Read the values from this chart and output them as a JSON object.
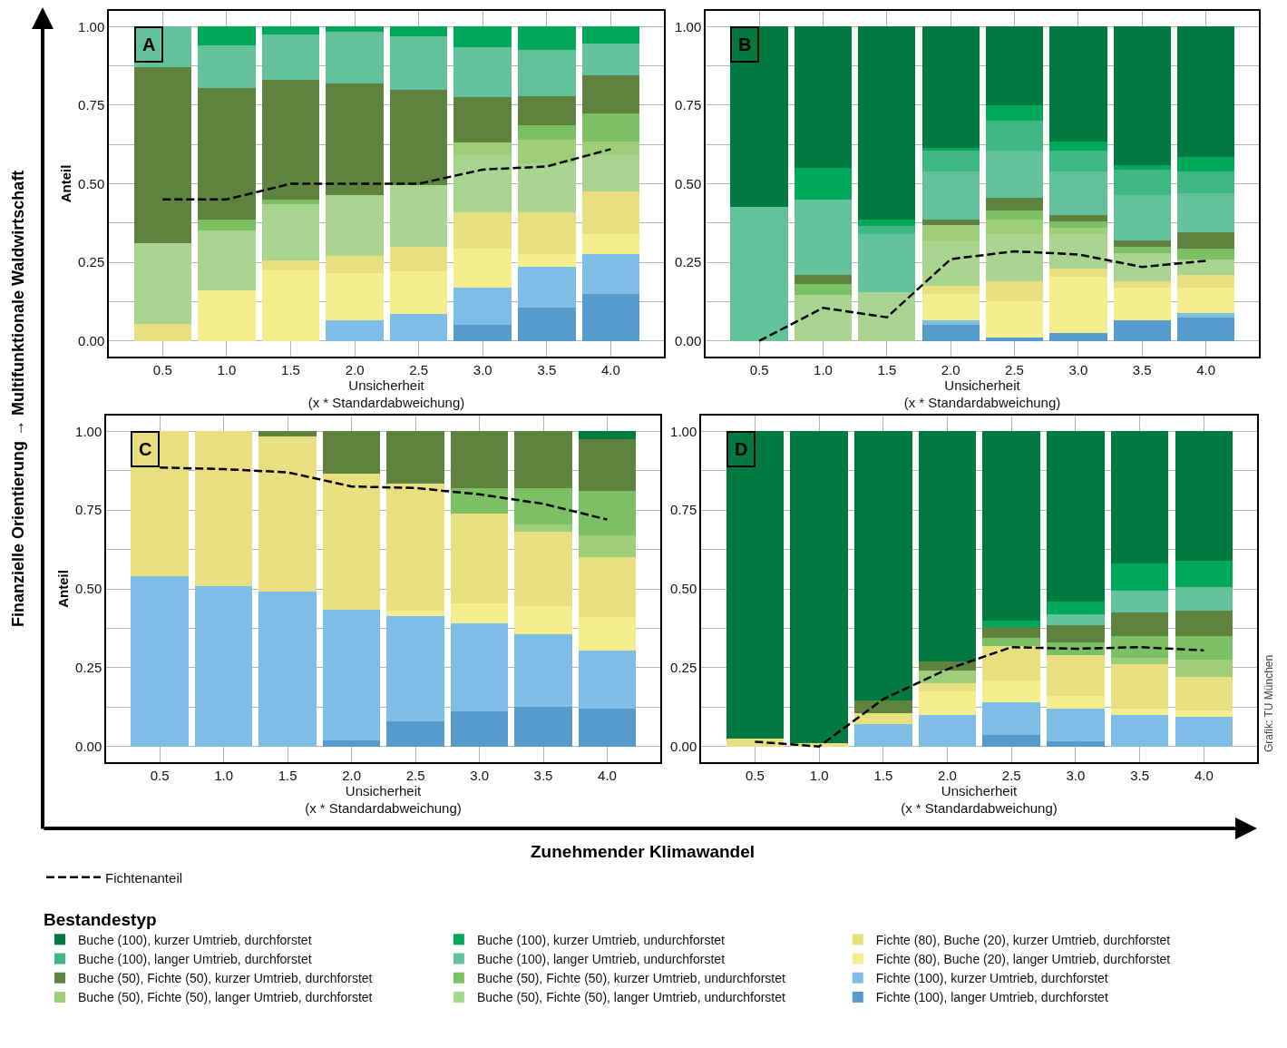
{
  "chart_data": [
    {
      "type": "bar",
      "title": "A",
      "stacked": true,
      "xlabel": "Unsicherheit\n(x * Standardabweichung)",
      "ylabel": "Anteil",
      "legend": "bottom",
      "legend_title": "Bestandestyp",
      "grid": true,
      "annotations": [
        "Finanzielle Orientierung → Multifunktionale Waldwirtschaft",
        "Zunehmender Klimawandel",
        "Grafik: TU München"
      ],
      "categories": [
        "0.5",
        "1.0",
        "1.5",
        "2.0",
        "2.5",
        "3.0",
        "3.5",
        "4.0"
      ],
      "ylim": [
        -0.05,
        1.05
      ],
      "yticks": [
        {
          "value": 0,
          "label": "0.00"
        },
        {
          "value": 0.125,
          "label": null
        },
        {
          "value": 0.25,
          "label": "0.25"
        },
        {
          "value": 0.375,
          "label": null
        },
        {
          "value": 0.5,
          "label": "0.50"
        },
        {
          "value": 0.625,
          "label": null
        },
        {
          "value": 0.75,
          "label": "0.75"
        },
        {
          "value": 0.875,
          "label": null
        },
        {
          "value": 1,
          "label": "1.00"
        }
      ],
      "series": [
        {
          "name": "Fichte (100), langer Umtrieb, durchforstet",
          "color": "#559bcb",
          "values": [
            0,
            0,
            0,
            0,
            0,
            0.05,
            0.105,
            0.15
          ]
        },
        {
          "name": "Fichte (100), kurzer Umtrieb, durchforstet",
          "color": "#7dbde6",
          "values": [
            0,
            0,
            0,
            0.065,
            0.085,
            0.12,
            0.13,
            0.125
          ]
        },
        {
          "name": "Fichte (80), Buche (20), langer Umtrieb, durchforstet",
          "color": "#f4ee8f",
          "values": [
            0,
            0.16,
            0.225,
            0.15,
            0.135,
            0.125,
            0.04,
            0.065
          ]
        },
        {
          "name": "Fichte (80), Buche (20), kurzer Umtrieb, durchforstet",
          "color": "#e8df80",
          "values": [
            0.055,
            0,
            0.03,
            0.055,
            0.08,
            0.115,
            0.135,
            0.135
          ]
        },
        {
          "name": "Buche (50), Fichte (50), langer Umtrieb, undurchforstet",
          "color": "#aad591",
          "values": [
            0.255,
            0.19,
            0.18,
            0.195,
            0.195,
            0.18,
            0.155,
            0.115
          ]
        },
        {
          "name": "Buche (50), Fichte (50), langer Umtrieb, durchforstet",
          "color": "#9fce78",
          "values": [
            0,
            0,
            0,
            0,
            0,
            0.04,
            0.075,
            0.045
          ]
        },
        {
          "name": "Buche (50), Fichte (50), kurzer Umtrieb, undurchforstet",
          "color": "#7bc063",
          "values": [
            0,
            0.035,
            0.015,
            0,
            0,
            0,
            0.045,
            0.09
          ]
        },
        {
          "name": "Buche (50), Fichte (50), kurzer Umtrieb, durchforstet",
          "color": "#60823f",
          "values": [
            0.56,
            0.42,
            0.38,
            0.355,
            0.305,
            0.145,
            0.095,
            0.12
          ]
        },
        {
          "name": "Buche (100), langer Umtrieb, undurchforstet",
          "color": "#63c19c",
          "values": [
            0.13,
            0.135,
            0.145,
            0.165,
            0.17,
            0.16,
            0.145,
            0.1
          ]
        },
        {
          "name": "Buche (100), langer Umtrieb, durchforstet",
          "color": "#40b883",
          "values": [
            0,
            0,
            0,
            0,
            0,
            0,
            0,
            0
          ]
        },
        {
          "name": "Buche (100), kurzer Umtrieb, undurchforstet",
          "color": "#00a85a",
          "values": [
            0,
            0.06,
            0.025,
            0.015,
            0.03,
            0.065,
            0.075,
            0.055
          ]
        },
        {
          "name": "Buche (100), kurzer Umtrieb, durchforstet",
          "color": "#007a40",
          "values": [
            0,
            0,
            0,
            0,
            0,
            0,
            0,
            0
          ]
        },
        {
          "name": "Fichtenanteil",
          "type": "line",
          "line_style": "dashed",
          "color": "#000000",
          "values": [
            0.45,
            0.45,
            0.5,
            0.5,
            0.5,
            0.545,
            0.555,
            0.61
          ]
        }
      ]
    },
    {
      "type": "bar",
      "title": "B",
      "stacked": true,
      "xlabel": "Unsicherheit\n(x * Standardabweichung)",
      "grid": true,
      "categories": [
        "0.5",
        "1.0",
        "1.5",
        "2.0",
        "2.5",
        "3.0",
        "3.5",
        "4.0"
      ],
      "ylim": [
        -0.05,
        1.05
      ],
      "yticks": [
        {
          "value": 0,
          "label": "0.00"
        },
        {
          "value": 0.125,
          "label": null
        },
        {
          "value": 0.25,
          "label": "0.25"
        },
        {
          "value": 0.375,
          "label": null
        },
        {
          "value": 0.5,
          "label": "0.50"
        },
        {
          "value": 0.625,
          "label": null
        },
        {
          "value": 0.75,
          "label": "0.75"
        },
        {
          "value": 0.875,
          "label": null
        },
        {
          "value": 1,
          "label": "1.00"
        }
      ],
      "series": [
        {
          "color": "#559bcb",
          "values": [
            0,
            0,
            0,
            0.05,
            0.01,
            0.025,
            0.065,
            0.075
          ]
        },
        {
          "color": "#7dbde6",
          "values": [
            0,
            0,
            0,
            0.015,
            0,
            0,
            0,
            0.015
          ]
        },
        {
          "color": "#f4ee8f",
          "values": [
            0,
            0,
            0,
            0.085,
            0.115,
            0.18,
            0.105,
            0.08
          ]
        },
        {
          "color": "#e8df80",
          "values": [
            0,
            0,
            0,
            0.025,
            0.065,
            0.025,
            0.02,
            0.04
          ]
        },
        {
          "color": "#aad591",
          "values": [
            0,
            0.145,
            0.155,
            0.145,
            0.15,
            0.11,
            0.09,
            0.05
          ]
        },
        {
          "color": "#9fce78",
          "values": [
            0,
            0,
            0,
            0.05,
            0.045,
            0.02,
            0,
            0
          ]
        },
        {
          "color": "#7bc063",
          "values": [
            0,
            0.035,
            0,
            0,
            0.03,
            0.02,
            0.02,
            0.035
          ]
        },
        {
          "color": "#60823f",
          "values": [
            0,
            0.03,
            0,
            0.015,
            0.04,
            0.02,
            0.02,
            0.05
          ]
        },
        {
          "color": "#63c19c",
          "values": [
            0.425,
            0.24,
            0.185,
            0.155,
            0.15,
            0.14,
            0.145,
            0.125
          ]
        },
        {
          "color": "#40b883",
          "values": [
            0,
            0,
            0.025,
            0.065,
            0.095,
            0.065,
            0.08,
            0.07
          ]
        },
        {
          "color": "#00a85a",
          "values": [
            0,
            0.1,
            0.02,
            0.01,
            0.05,
            0.03,
            0.015,
            0.045
          ]
        },
        {
          "color": "#007a40",
          "values": [
            0.575,
            0.45,
            0.615,
            0.385,
            0.25,
            0.365,
            0.44,
            0.415
          ]
        },
        {
          "type": "line",
          "line_style": "dashed",
          "color": "#000000",
          "values": [
            0,
            0.105,
            0.075,
            0.26,
            0.285,
            0.275,
            0.235,
            0.255
          ]
        }
      ]
    },
    {
      "type": "bar",
      "title": "C",
      "stacked": true,
      "xlabel": "Unsicherheit\n(x * Standardabweichung)",
      "ylabel": "Anteil",
      "grid": true,
      "categories": [
        "0.5",
        "1.0",
        "1.5",
        "2.0",
        "2.5",
        "3.0",
        "3.5",
        "4.0"
      ],
      "ylim": [
        -0.05,
        1.05
      ],
      "yticks": [
        {
          "value": 0,
          "label": "0.00"
        },
        {
          "value": 0.125,
          "label": null
        },
        {
          "value": 0.25,
          "label": "0.25"
        },
        {
          "value": 0.375,
          "label": null
        },
        {
          "value": 0.5,
          "label": "0.50"
        },
        {
          "value": 0.625,
          "label": null
        },
        {
          "value": 0.75,
          "label": "0.75"
        },
        {
          "value": 0.875,
          "label": null
        },
        {
          "value": 1,
          "label": "1.00"
        }
      ],
      "series": [
        {
          "color": "#559bcb",
          "values": [
            0,
            0,
            0,
            0.02,
            0.08,
            0.11,
            0.125,
            0.12
          ]
        },
        {
          "color": "#7dbde6",
          "values": [
            0.54,
            0.51,
            0.49,
            0.415,
            0.335,
            0.28,
            0.23,
            0.185
          ]
        },
        {
          "color": "#f4ee8f",
          "values": [
            0,
            0,
            0,
            0,
            0.015,
            0.065,
            0.09,
            0.105
          ]
        },
        {
          "color": "#e8df80",
          "values": [
            0.46,
            0.49,
            0.495,
            0.43,
            0.405,
            0.285,
            0.235,
            0.19
          ]
        },
        {
          "color": "#aad591",
          "values": [
            0,
            0,
            0,
            0,
            0,
            0,
            0,
            0
          ]
        },
        {
          "color": "#9fce78",
          "values": [
            0,
            0,
            0,
            0,
            0,
            0,
            0.025,
            0.07
          ]
        },
        {
          "color": "#7bc063",
          "values": [
            0,
            0,
            0,
            0,
            0,
            0.08,
            0.115,
            0.14
          ]
        },
        {
          "color": "#60823f",
          "values": [
            0,
            0,
            0.015,
            0.135,
            0.165,
            0.18,
            0.18,
            0.165
          ]
        },
        {
          "color": "#63c19c",
          "values": [
            0,
            0,
            0,
            0,
            0,
            0,
            0,
            0
          ]
        },
        {
          "color": "#40b883",
          "values": [
            0,
            0,
            0,
            0,
            0,
            0,
            0,
            0
          ]
        },
        {
          "color": "#00a85a",
          "values": [
            0,
            0,
            0,
            0,
            0,
            0,
            0,
            0
          ]
        },
        {
          "color": "#007a40",
          "values": [
            0,
            0,
            0,
            0,
            0,
            0,
            0,
            0.025
          ]
        },
        {
          "type": "line",
          "line_style": "dashed",
          "color": "#000000",
          "values": [
            0.885,
            0.88,
            0.87,
            0.825,
            0.82,
            0.8,
            0.77,
            0.72
          ]
        }
      ]
    },
    {
      "type": "bar",
      "title": "D",
      "stacked": true,
      "xlabel": "Unsicherheit\n(x * Standardabweichung)",
      "grid": true,
      "categories": [
        "0.5",
        "1.0",
        "1.5",
        "2.0",
        "2.5",
        "3.0",
        "3.5",
        "4.0"
      ],
      "ylim": [
        -0.05,
        1.05
      ],
      "yticks": [
        {
          "value": 0,
          "label": "0.00"
        },
        {
          "value": 0.125,
          "label": null
        },
        {
          "value": 0.25,
          "label": "0.25"
        },
        {
          "value": 0.375,
          "label": null
        },
        {
          "value": 0.5,
          "label": "0.50"
        },
        {
          "value": 0.625,
          "label": null
        },
        {
          "value": 0.75,
          "label": "0.75"
        },
        {
          "value": 0.875,
          "label": null
        },
        {
          "value": 1,
          "label": "1.00"
        }
      ],
      "series": [
        {
          "color": "#559bcb",
          "values": [
            0,
            0,
            0,
            0,
            0.035,
            0.015,
            0,
            0
          ]
        },
        {
          "color": "#7dbde6",
          "values": [
            0,
            0,
            0.07,
            0.1,
            0.105,
            0.105,
            0.1,
            0.095
          ]
        },
        {
          "color": "#f4ee8f",
          "values": [
            0,
            0,
            0,
            0.075,
            0.07,
            0.04,
            0.02,
            0.02
          ]
        },
        {
          "color": "#e8df80",
          "values": [
            0.025,
            0.01,
            0.035,
            0.025,
            0.11,
            0.13,
            0.14,
            0.105
          ]
        },
        {
          "color": "#aad591",
          "values": [
            0,
            0,
            0,
            0,
            0,
            0,
            0,
            0
          ]
        },
        {
          "color": "#9fce78",
          "values": [
            0,
            0,
            0,
            0.04,
            0,
            0,
            0.02,
            0.055
          ]
        },
        {
          "color": "#7bc063",
          "values": [
            0,
            0,
            0,
            0,
            0.025,
            0.04,
            0.07,
            0.075
          ]
        },
        {
          "color": "#60823f",
          "values": [
            0,
            0,
            0.04,
            0.03,
            0.035,
            0.055,
            0.075,
            0.08
          ]
        },
        {
          "color": "#63c19c",
          "values": [
            0,
            0,
            0,
            0,
            0,
            0.035,
            0.07,
            0.075
          ]
        },
        {
          "color": "#40b883",
          "values": [
            0,
            0,
            0,
            0,
            0,
            0,
            0,
            0
          ]
        },
        {
          "color": "#00a85a",
          "values": [
            0,
            0,
            0,
            0,
            0.02,
            0.04,
            0.085,
            0.085
          ]
        },
        {
          "color": "#007a40",
          "values": [
            0.975,
            0.99,
            0.855,
            0.73,
            0.6,
            0.54,
            0.42,
            0.41
          ]
        },
        {
          "type": "line",
          "line_style": "dashed",
          "color": "#000000",
          "values": [
            0.015,
            0,
            0.15,
            0.245,
            0.315,
            0.31,
            0.315,
            0.305
          ]
        }
      ]
    }
  ]
}
